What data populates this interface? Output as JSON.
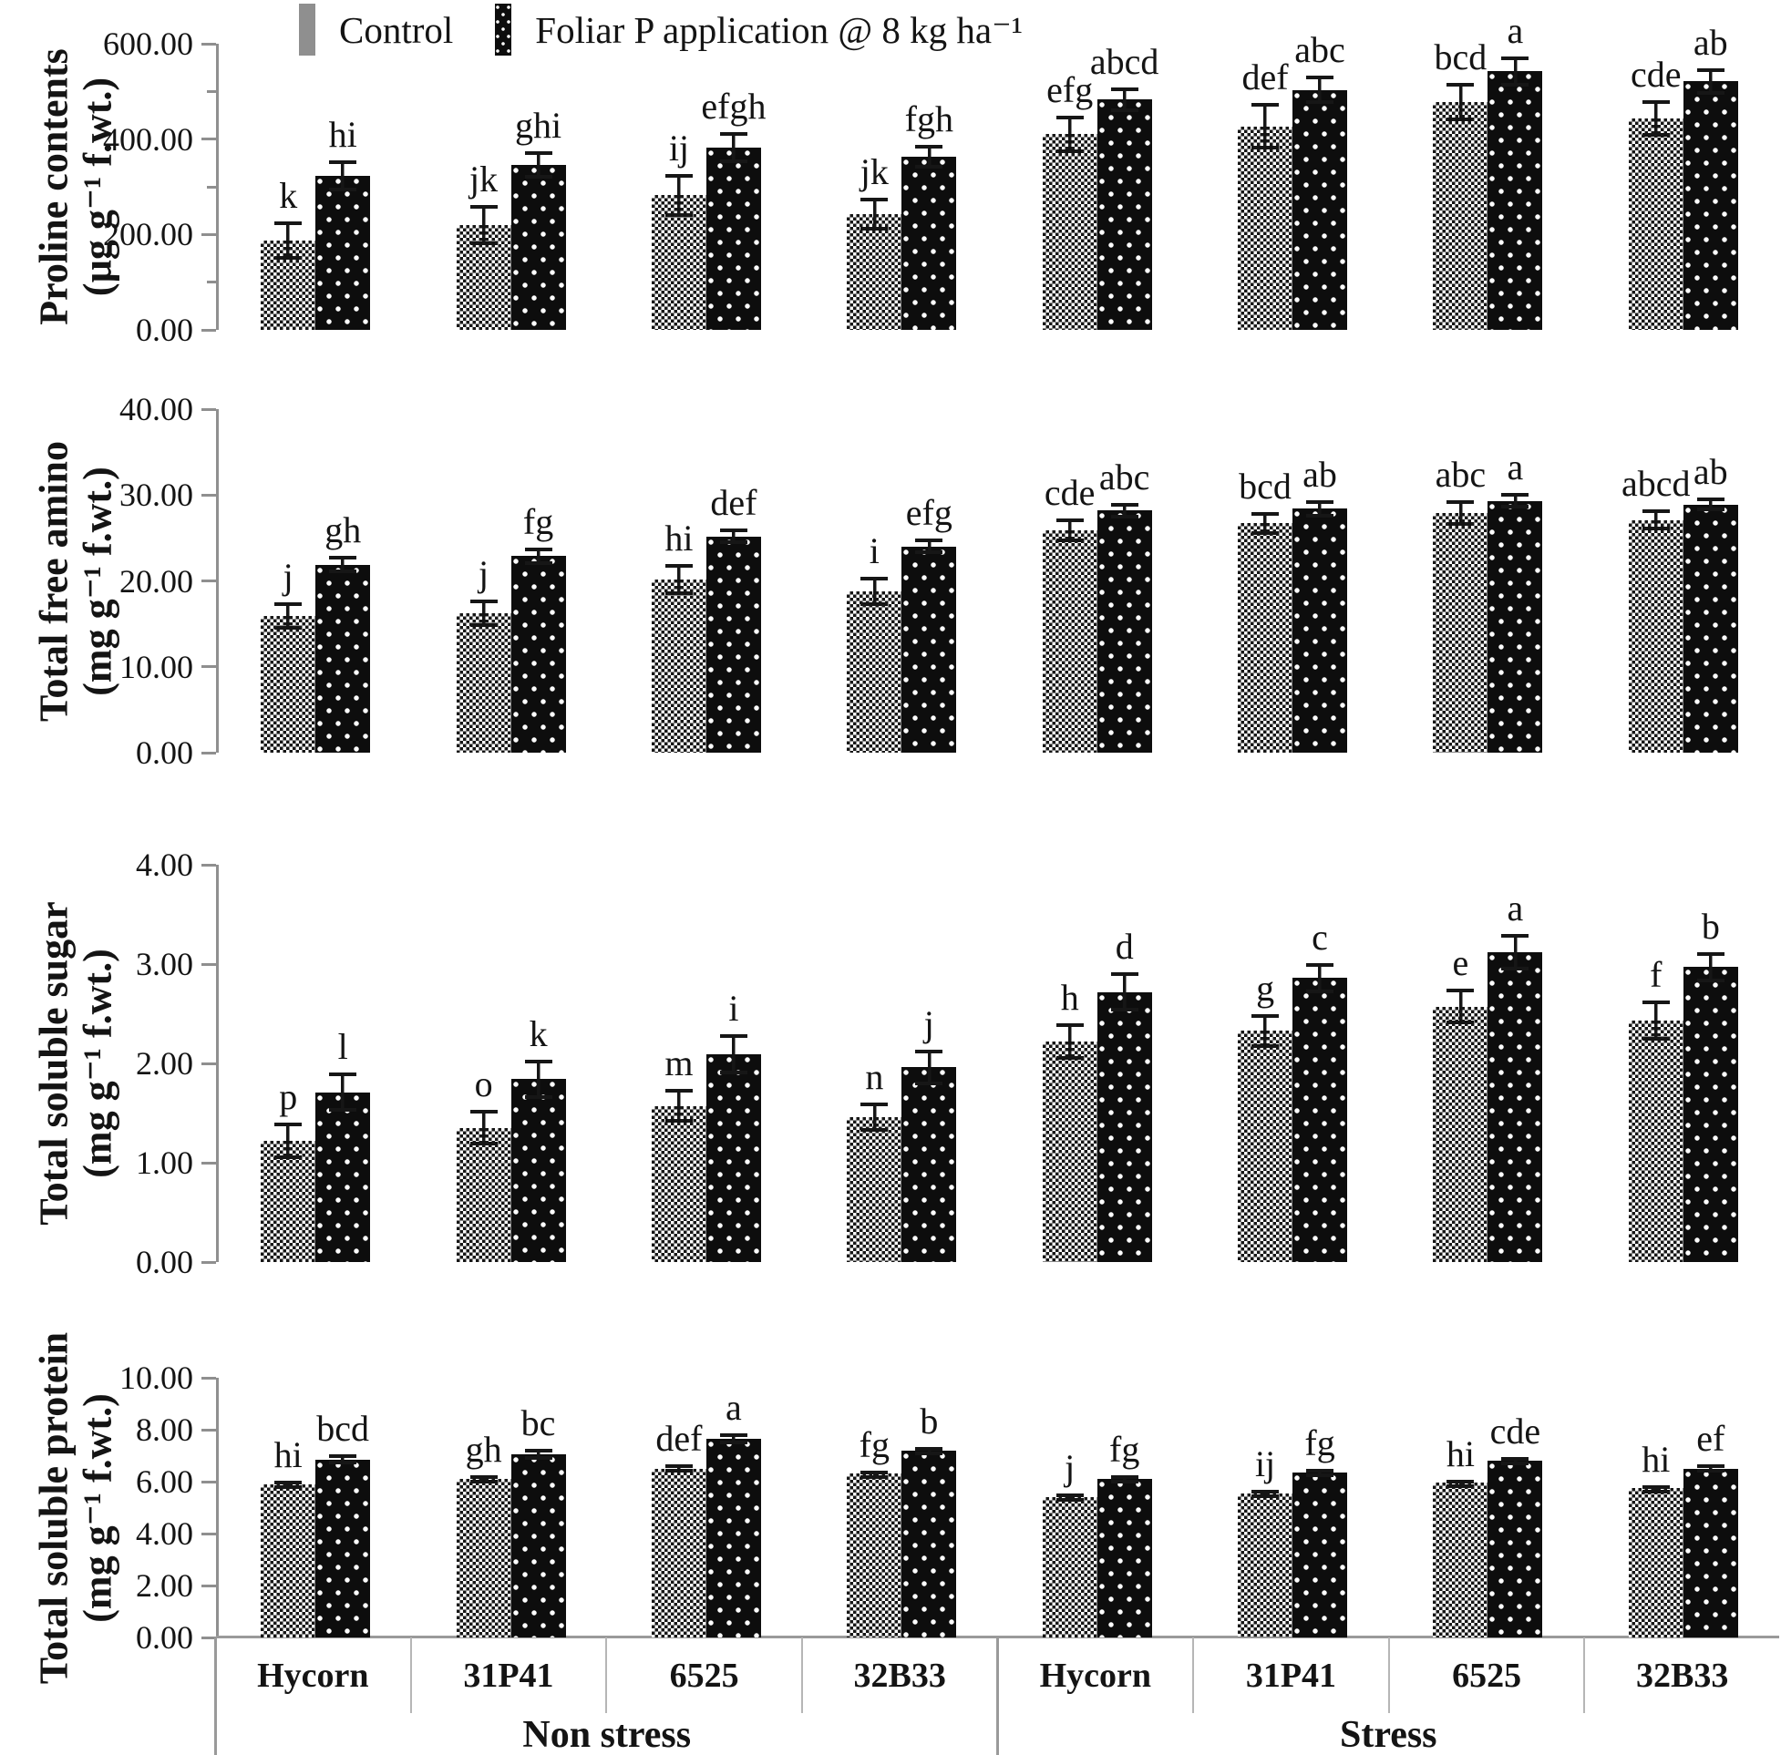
{
  "legend": {
    "items": [
      {
        "id": "control",
        "label": "Control"
      },
      {
        "id": "foliar",
        "label": "Foliar P application @ 8 kg ha⁻¹"
      }
    ]
  },
  "x_axis": {
    "cultivar_cells": [
      "Hycorn",
      "31P41",
      "6525",
      "32B33",
      "Hycorn",
      "31P41",
      "6525",
      "32B33"
    ],
    "treatment_cells": [
      "Non stress",
      "Stress"
    ]
  },
  "chart_data": [
    {
      "type": "bar",
      "ylabel": "Proline contents",
      "yunit": "(µg g⁻¹ f.wt.)",
      "ylim": [
        0,
        600
      ],
      "ytick_labels": [
        "0.00",
        "200.00",
        "400.00",
        "600.00"
      ],
      "yticks_minor": [
        100,
        300,
        500
      ],
      "grid": false,
      "legend_position": "top",
      "categories": [
        "Non stress Hycorn",
        "Non stress 31P41",
        "Non stress 6525",
        "Non stress 32B33",
        "Stress Hycorn",
        "Stress 31P41",
        "Stress 6525",
        "Stress 32B33"
      ],
      "series": [
        {
          "name": "Control",
          "values": [
            187,
            220,
            282,
            243,
            410,
            427,
            477,
            443
          ],
          "errors": [
            40,
            42,
            45,
            35,
            40,
            48,
            40,
            38
          ],
          "letters": [
            "k",
            "jk",
            "ij",
            "jk",
            "efg",
            "def",
            "bcd",
            "cde"
          ]
        },
        {
          "name": "Foliar P application @ 8 kg ha⁻¹",
          "values": [
            323,
            346,
            382,
            363,
            483,
            503,
            542,
            521
          ],
          "errors": [
            33,
            28,
            32,
            25,
            26,
            30,
            31,
            28
          ],
          "letters": [
            "hi",
            "ghi",
            "efgh",
            "fgh",
            "abcd",
            "abc",
            "a",
            "ab"
          ]
        }
      ]
    },
    {
      "type": "bar",
      "ylabel": "Total free amino",
      "yunit": "(mg g⁻¹ f.wt.)",
      "ylim": [
        0,
        40
      ],
      "ytick_labels": [
        "0.00",
        "10.00",
        "20.00",
        "30.00",
        "40.00"
      ],
      "grid": false,
      "categories": [
        "Non stress Hycorn",
        "Non stress 31P41",
        "Non stress 6525",
        "Non stress 32B33",
        "Stress Hycorn",
        "Stress 31P41",
        "Stress 6525",
        "Stress 32B33"
      ],
      "series": [
        {
          "name": "Control",
          "values": [
            15.9,
            16.2,
            20.2,
            18.8,
            25.9,
            26.7,
            27.9,
            27.1
          ],
          "errors": [
            1.6,
            1.6,
            1.8,
            1.7,
            1.4,
            1.3,
            1.5,
            1.2
          ],
          "letters": [
            "j",
            "j",
            "hi",
            "i",
            "cde",
            "bcd",
            "abc",
            "abcd"
          ]
        },
        {
          "name": "Foliar P application @ 8 kg ha⁻¹",
          "values": [
            21.9,
            22.9,
            25.2,
            24.0,
            28.2,
            28.4,
            29.3,
            28.9
          ],
          "errors": [
            1.0,
            1.0,
            0.9,
            0.9,
            0.9,
            1.0,
            0.9,
            0.8
          ],
          "letters": [
            "gh",
            "fg",
            "def",
            "efg",
            "abc",
            "ab",
            "a",
            "ab"
          ]
        }
      ]
    },
    {
      "type": "bar",
      "ylabel": "Total soluble sugar",
      "yunit": "(mg g⁻¹ f.wt.)",
      "ylim": [
        0,
        4
      ],
      "ytick_labels": [
        "0.00",
        "1.00",
        "2.00",
        "3.00",
        "4.00"
      ],
      "grid": false,
      "categories": [
        "Non stress Hycorn",
        "Non stress 31P41",
        "Non stress 6525",
        "Non stress 32B33",
        "Stress Hycorn",
        "Stress 31P41",
        "Stress 6525",
        "Stress 32B33"
      ],
      "series": [
        {
          "name": "Control",
          "values": [
            1.22,
            1.35,
            1.57,
            1.46,
            2.22,
            2.33,
            2.57,
            2.43
          ],
          "errors": [
            0.18,
            0.18,
            0.17,
            0.15,
            0.18,
            0.17,
            0.18,
            0.2
          ],
          "letters": [
            "p",
            "o",
            "m",
            "n",
            "h",
            "g",
            "e",
            "f"
          ]
        },
        {
          "name": "Foliar P application @ 8 kg ha⁻¹",
          "values": [
            1.71,
            1.84,
            2.09,
            1.96,
            2.72,
            2.86,
            3.12,
            2.97
          ],
          "errors": [
            0.2,
            0.2,
            0.2,
            0.18,
            0.2,
            0.15,
            0.18,
            0.15
          ],
          "letters": [
            "l",
            "k",
            "i",
            "j",
            "d",
            "c",
            "a",
            "b"
          ]
        }
      ]
    },
    {
      "type": "bar",
      "ylabel": "Total soluble protein",
      "yunit": "(mg g⁻¹ f.wt.)",
      "ylim": [
        0,
        10
      ],
      "ytick_labels": [
        "0.00",
        "2.00",
        "4.00",
        "6.00",
        "8.00",
        "10.00"
      ],
      "grid": false,
      "categories": [
        "Non stress Hycorn",
        "Non stress 31P41",
        "Non stress 6525",
        "Non stress 32B33",
        "Stress Hycorn",
        "Stress 31P41",
        "Stress 6525",
        "Stress 32B33"
      ],
      "series": [
        {
          "name": "Control",
          "values": [
            5.9,
            6.1,
            6.5,
            6.3,
            5.4,
            5.55,
            5.95,
            5.75
          ],
          "errors": [
            0.15,
            0.15,
            0.15,
            0.12,
            0.15,
            0.12,
            0.12,
            0.12
          ],
          "letters": [
            "hi",
            "gh",
            "def",
            "fg",
            "j",
            "ij",
            "hi",
            "hi"
          ]
        },
        {
          "name": "Foliar P application @ 8 kg ha⁻¹",
          "values": [
            6.85,
            7.05,
            7.65,
            7.2,
            6.1,
            6.35,
            6.8,
            6.5
          ],
          "errors": [
            0.2,
            0.2,
            0.2,
            0.15,
            0.15,
            0.15,
            0.15,
            0.15
          ],
          "letters": [
            "bcd",
            "bc",
            "a",
            "b",
            "fg",
            "fg",
            "cde",
            "ef"
          ]
        }
      ]
    }
  ],
  "colors": {
    "axis": "#8f8f8f",
    "table_line": "#9a9a9a",
    "cell_separator": "#b6b6b6",
    "bar_dark": "#0d0d0d",
    "legend_control_fill": "#8f8f8f",
    "text": "#141414"
  }
}
